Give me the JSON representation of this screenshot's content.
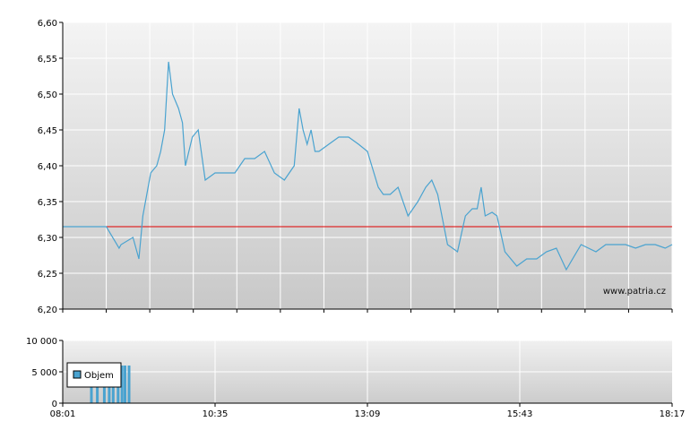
{
  "watermark": "www.patria.cz",
  "chart_data": [
    {
      "type": "line",
      "title": "",
      "xlabel": "",
      "ylabel": "",
      "ylim": [
        6.2,
        6.6
      ],
      "yticks": [
        "6,60",
        "6,55",
        "6,50",
        "6,45",
        "6,40",
        "6,35",
        "6,30",
        "6,25",
        "6,20"
      ],
      "grid": true,
      "reference_line": {
        "value": 6.315,
        "color": "#e00000"
      },
      "series": [
        {
          "name": "",
          "color": "#4aa3d0",
          "x": [
            "08:01",
            "08:45",
            "08:58",
            "09:00",
            "09:12",
            "09:18",
            "09:22",
            "09:30",
            "09:36",
            "09:40",
            "09:44",
            "09:48",
            "09:52",
            "09:58",
            "10:02",
            "10:05",
            "10:12",
            "10:18",
            "10:25",
            "10:35",
            "10:45",
            "10:55",
            "11:05",
            "11:15",
            "11:25",
            "11:35",
            "11:45",
            "11:55",
            "12:00",
            "12:04",
            "12:08",
            "12:12",
            "12:16",
            "12:20",
            "12:30",
            "12:40",
            "12:50",
            "13:00",
            "13:09",
            "13:20",
            "13:25",
            "13:32",
            "13:40",
            "13:50",
            "14:00",
            "14:08",
            "14:14",
            "14:20",
            "14:30",
            "14:40",
            "14:48",
            "14:55",
            "15:00",
            "15:04",
            "15:08",
            "15:15",
            "15:20",
            "15:28",
            "15:40",
            "15:50",
            "15:55",
            "16:00",
            "16:05",
            "16:10",
            "16:20",
            "16:30",
            "16:45",
            "17:00",
            "17:10",
            "17:20",
            "17:30",
            "17:40",
            "17:50",
            "18:00",
            "18:10",
            "18:17"
          ],
          "values": [
            6.315,
            6.315,
            6.285,
            6.29,
            6.3,
            6.27,
            6.33,
            6.39,
            6.4,
            6.42,
            6.45,
            6.545,
            6.5,
            6.48,
            6.46,
            6.4,
            6.44,
            6.45,
            6.38,
            6.39,
            6.39,
            6.39,
            6.41,
            6.41,
            6.42,
            6.39,
            6.38,
            6.4,
            6.48,
            6.45,
            6.43,
            6.45,
            6.42,
            6.42,
            6.43,
            6.44,
            6.44,
            6.43,
            6.42,
            6.37,
            6.36,
            6.36,
            6.37,
            6.33,
            6.35,
            6.37,
            6.38,
            6.36,
            6.29,
            6.28,
            6.33,
            6.34,
            6.34,
            6.37,
            6.33,
            6.335,
            6.33,
            6.28,
            6.26,
            6.27,
            6.27,
            6.27,
            6.275,
            6.28,
            6.285,
            6.255,
            6.29,
            6.28,
            6.29,
            6.29,
            6.29,
            6.285,
            6.29,
            6.29,
            6.285,
            6.29
          ]
        }
      ]
    },
    {
      "type": "bar",
      "title": "",
      "xlabel": "",
      "ylabel": "",
      "ylim": [
        0,
        10000
      ],
      "yticks": [
        "10 000",
        "5 000",
        "0"
      ],
      "xticks": [
        "08:01",
        "10:35",
        "13:09",
        "15:43",
        "18:17"
      ],
      "legend": "top-left",
      "series": [
        {
          "name": "Objem",
          "color": "#4aa3d0",
          "x": [
            "08:30",
            "08:36",
            "08:43",
            "08:48",
            "08:52",
            "08:57",
            "09:01",
            "09:04",
            "09:08"
          ],
          "values": [
            6000,
            6000,
            6000,
            6000,
            6000,
            6000,
            6000,
            6000,
            6000
          ]
        }
      ]
    }
  ]
}
